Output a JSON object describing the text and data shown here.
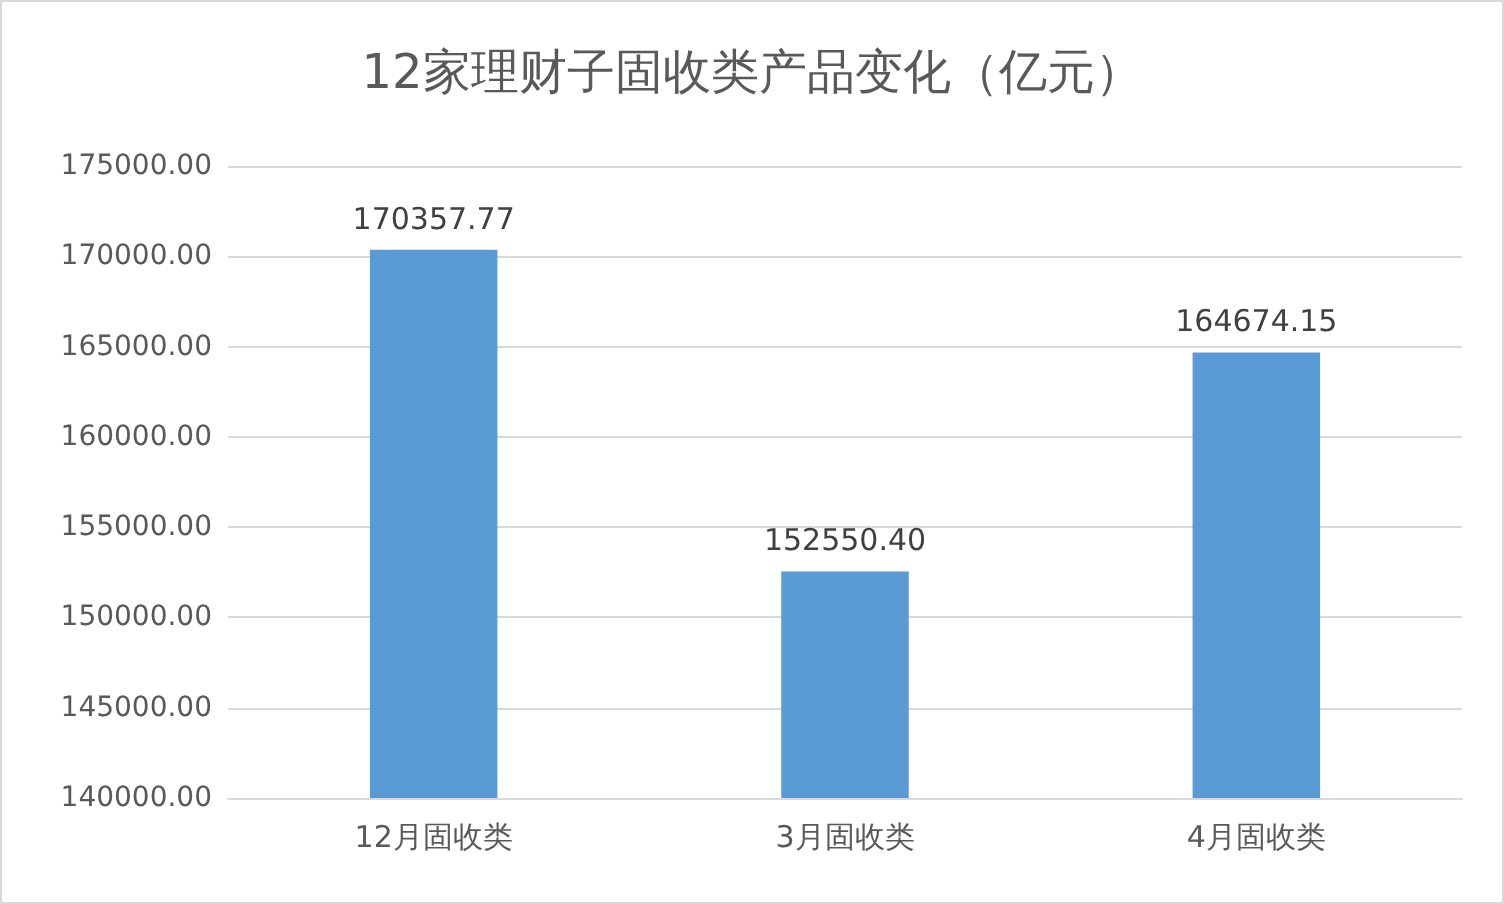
{
  "chart_data": {
    "type": "bar",
    "title": "12家理财子固收类产品变化（亿元）",
    "categories": [
      "12月固收类",
      "3月固收类",
      "4月固收类"
    ],
    "values": [
      170357.77,
      152550.4,
      164674.15
    ],
    "value_labels": [
      "170357.77",
      "152550.40",
      "164674.15"
    ],
    "color": "#5b9bd5",
    "ylim": [
      140000,
      175000
    ],
    "yticks": [
      {
        "value": 140000,
        "label": "140000.00"
      },
      {
        "value": 145000,
        "label": "145000.00"
      },
      {
        "value": 150000,
        "label": "150000.00"
      },
      {
        "value": 155000,
        "label": "155000.00"
      },
      {
        "value": 160000,
        "label": "160000.00"
      },
      {
        "value": 165000,
        "label": "165000.00"
      },
      {
        "value": 170000,
        "label": "170000.00"
      },
      {
        "value": 175000,
        "label": "175000.00"
      }
    ],
    "grid": "y"
  }
}
